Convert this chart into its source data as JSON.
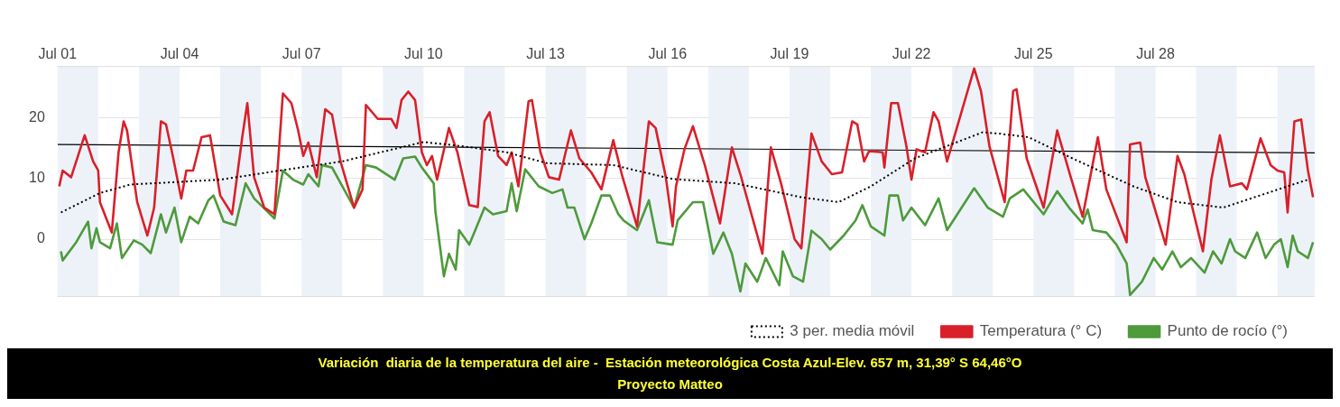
{
  "chart_data": {
    "type": "line",
    "xlim": [
      "--07-01T00:00",
      "--07-31T22:00"
    ],
    "xticks": [
      {
        "value": "--07-01",
        "label": "Jul 01"
      },
      {
        "value": "--07-04",
        "label": "Jul 04"
      },
      {
        "value": "--07-07",
        "label": "Jul 07"
      },
      {
        "value": "--07-10",
        "label": "Jul 10"
      },
      {
        "value": "--07-13",
        "label": "Jul 13"
      },
      {
        "value": "--07-16",
        "label": "Jul 16"
      },
      {
        "value": "--07-19",
        "label": "Jul 19"
      },
      {
        "value": "--07-22",
        "label": "Jul 22"
      },
      {
        "value": "--07-25",
        "label": "Jul 25"
      },
      {
        "value": "--07-28",
        "label": "Jul 28"
      }
    ],
    "ylim": [
      -9.5,
      28.5
    ],
    "yticks": [
      0,
      10,
      20
    ],
    "grid": "y",
    "legend": "bottom right",
    "bands": [
      {
        "axis": "x",
        "from": "--07-01",
        "to": "--07-02",
        "color": "#edf2f8"
      },
      {
        "axis": "x",
        "from": "--07-03",
        "to": "--07-04",
        "color": "#edf2f8"
      },
      {
        "axis": "x",
        "from": "--07-05",
        "to": "--07-06",
        "color": "#edf2f8"
      },
      {
        "axis": "x",
        "from": "--07-07",
        "to": "--07-08",
        "color": "#edf2f8"
      },
      {
        "axis": "x",
        "from": "--07-09",
        "to": "--07-10",
        "color": "#edf2f8"
      },
      {
        "axis": "x",
        "from": "--07-11",
        "to": "--07-12",
        "color": "#edf2f8"
      },
      {
        "axis": "x",
        "from": "--07-13",
        "to": "--07-14",
        "color": "#edf2f8"
      },
      {
        "axis": "x",
        "from": "--07-15",
        "to": "--07-16",
        "color": "#edf2f8"
      },
      {
        "axis": "x",
        "from": "--07-17",
        "to": "--07-18",
        "color": "#edf2f8"
      },
      {
        "axis": "x",
        "from": "--07-19",
        "to": "--07-20",
        "color": "#edf2f8"
      },
      {
        "axis": "x",
        "from": "--07-21",
        "to": "--07-22",
        "color": "#edf2f8"
      },
      {
        "axis": "x",
        "from": "--07-23",
        "to": "--07-24",
        "color": "#edf2f8"
      },
      {
        "axis": "x",
        "from": "--07-25",
        "to": "--07-26",
        "color": "#edf2f8"
      },
      {
        "axis": "x",
        "from": "--07-27",
        "to": "--07-28",
        "color": "#edf2f8"
      },
      {
        "axis": "x",
        "from": "--07-29",
        "to": "--07-30",
        "color": "#edf2f8"
      },
      {
        "axis": "x",
        "from": "--07-31",
        "to": "--07-31T22:00",
        "color": "#edf2f8"
      }
    ],
    "series": [
      {
        "name": "3 per. media móvil",
        "color": "#000000",
        "line_style": "dotted",
        "x": [
          "--07-01T02:00",
          "--07-02T01:00",
          "--07-02T19:00",
          "--07-05T00:00",
          "--07-06T11:00",
          "--07-08T00:00",
          "--07-10T00:00",
          "--07-10T23:00",
          "--07-12T01:00",
          "--07-13T01:00",
          "--07-14T16:00",
          "--07-16T03:00",
          "--07-17T16:00",
          "--07-19T07:00",
          "--07-20T05:00",
          "--07-21T00:00",
          "--07-22T02:00",
          "--07-23T18:00",
          "--07-24T03:00",
          "--07-24T21:00",
          "--07-25T23:00",
          "--07-27T11:00",
          "--07-28T13:00",
          "--07-29T16:00",
          "--07-30T18:00",
          "--07-31T19:00"
        ],
        "values": [
          4.4,
          7.6,
          9.0,
          9.8,
          11.3,
          12.8,
          16.0,
          15.3,
          14.3,
          12.5,
          12.2,
          9.9,
          9.2,
          6.9,
          6.1,
          8.7,
          13.3,
          17.6,
          17.4,
          16.8,
          13.3,
          8.7,
          6.1,
          5.2,
          7.6,
          9.9
        ]
      },
      {
        "name": "Temperatura (° C)",
        "color": "#d9202a",
        "x": [
          "--07-01T01:00",
          "--07-01T03:00",
          "--07-01T08:00",
          "--07-01T16:00",
          "--07-01T21:00",
          "--07-02T00:00",
          "--07-02T01:00",
          "--07-02T08:00",
          "--07-02T12:00",
          "--07-02T15:00",
          "--07-02T17:00",
          "--07-02T23:00",
          "--07-03T05:00",
          "--07-03T09:00",
          "--07-03T13:00",
          "--07-03T16:00",
          "--07-03T20:00",
          "--07-04T01:00",
          "--07-04T04:00",
          "--07-04T08:00",
          "--07-04T13:00",
          "--07-04T18:00",
          "--07-05T00:00",
          "--07-05T07:00",
          "--07-05T13:00",
          "--07-05T16:00",
          "--07-05T20:00",
          "--07-06T02:00",
          "--07-06T08:00",
          "--07-06T13:00",
          "--07-06T18:00",
          "--07-06T22:00",
          "--07-07T01:00",
          "--07-07T04:00",
          "--07-07T09:00",
          "--07-07T14:00",
          "--07-07T18:00",
          "--07-07T23:00",
          "--07-08T07:00",
          "--07-08T12:00",
          "--07-08T14:00",
          "--07-08T21:00",
          "--07-09T05:00",
          "--07-09T08:00",
          "--07-09T11:00",
          "--07-09T15:00",
          "--07-09T19:00",
          "--07-09T23:00",
          "--07-10T02:00",
          "--07-10T05:00",
          "--07-10T08:00",
          "--07-10T15:00",
          "--07-10T20:00",
          "--07-11T03:00",
          "--07-11T08:00",
          "--07-11T12:00",
          "--07-11T15:00",
          "--07-11T20:00",
          "--07-12T01:00",
          "--07-12T04:00",
          "--07-12T08:00",
          "--07-12T14:00",
          "--07-12T16:00",
          "--07-12T21:00",
          "--07-13T02:00",
          "--07-13T08:00",
          "--07-13T11:00",
          "--07-13T15:00",
          "--07-13T20:00",
          "--07-14T03:00",
          "--07-14T09:00",
          "--07-14T16:00",
          "--07-14T21:00",
          "--07-15T06:00",
          "--07-15T13:00",
          "--07-15T17:00",
          "--07-15T23:00",
          "--07-16T03:00",
          "--07-16T05:00",
          "--07-16T10:00",
          "--07-16T15:00",
          "--07-16T22:00",
          "--07-17T07:00",
          "--07-17T14:00",
          "--07-17T19:00",
          "--07-18T08:00",
          "--07-18T13:00",
          "--07-18T19:00",
          "--07-19T03:00",
          "--07-19T07:00",
          "--07-19T13:00",
          "--07-19T19:00",
          "--07-20T01:00",
          "--07-20T07:00",
          "--07-20T13:00",
          "--07-20T16:00",
          "--07-20T20:00",
          "--07-20T23:00",
          "--07-21T07:00",
          "--07-21T08:00",
          "--07-21T12:00",
          "--07-21T16:00",
          "--07-21T21:00",
          "--07-22T00:00",
          "--07-22T03:00",
          "--07-22T08:00",
          "--07-22T13:00",
          "--07-22T16:00",
          "--07-22T21:00",
          "--07-23T13:00",
          "--07-23T17:00",
          "--07-23T22:00",
          "--07-24T07:00",
          "--07-24T12:00",
          "--07-24T14:00",
          "--07-24T20:00",
          "--07-25T06:00",
          "--07-25T14:00",
          "--07-25T22:00",
          "--07-26T05:00",
          "--07-26T14:00",
          "--07-26T19:00",
          "--07-27T07:00",
          "--07-27T09:00",
          "--07-27T15:00",
          "--07-27T18:00",
          "--07-28T06:00",
          "--07-28T13:00",
          "--07-28T17:00",
          "--07-29T04:00",
          "--07-29T09:00",
          "--07-29T14:00",
          "--07-29T20:00",
          "--07-30T03:00",
          "--07-30T06:00",
          "--07-30T14:00",
          "--07-30T20:00",
          "--07-31T00:00",
          "--07-31T04:00",
          "--07-31T06:00",
          "--07-31T10:00",
          "--07-31T14:00",
          "--07-31T18:00",
          "--07-31T21:00"
        ],
        "values": [
          8.7,
          11.3,
          10.2,
          17.1,
          12.8,
          11.3,
          6.1,
          1.1,
          14.3,
          19.4,
          17.9,
          6.1,
          0.6,
          5.2,
          19.4,
          18.9,
          13.7,
          6.7,
          11.3,
          11.3,
          16.8,
          17.1,
          7.2,
          4.1,
          16.8,
          22.4,
          10.2,
          5.2,
          4.1,
          24.0,
          22.4,
          17.9,
          13.7,
          15.9,
          10.2,
          21.4,
          20.5,
          12.8,
          5.2,
          8.2,
          22.1,
          19.8,
          19.8,
          18.3,
          22.9,
          24.3,
          22.9,
          14.3,
          12.2,
          13.7,
          9.8,
          18.3,
          14.3,
          5.6,
          5.3,
          19.4,
          20.9,
          13.7,
          12.2,
          14.3,
          8.7,
          22.7,
          22.9,
          14.3,
          10.2,
          9.8,
          13.3,
          17.9,
          13.3,
          11.0,
          8.2,
          16.3,
          10.7,
          2.1,
          19.4,
          18.3,
          10.2,
          2.1,
          8.7,
          14.8,
          18.6,
          12.2,
          2.6,
          15.1,
          10.7,
          -2.4,
          15.1,
          9.2,
          0,
          -1.5,
          17.4,
          12.8,
          10.7,
          11.0,
          19.4,
          18.9,
          12.8,
          14.5,
          14.3,
          11.8,
          22.4,
          22.4,
          15.3,
          9.8,
          14.8,
          14.3,
          20.9,
          19.4,
          12.8,
          28.1,
          24.4,
          15.3,
          6.1,
          24.4,
          24.7,
          13.3,
          5.2,
          17.9,
          10.2,
          3.7,
          16.8,
          8.2,
          -0.5,
          15.6,
          15.9,
          10.2,
          -0.9,
          13.7,
          10.7,
          -2.0,
          9.8,
          17.1,
          8.7,
          9.2,
          8.2,
          16.6,
          12.2,
          11.3,
          11.0,
          4.4,
          19.4,
          19.7,
          11.3,
          6.9
        ]
      },
      {
        "name": "Punto de rocío (°)",
        "color": "#4e9a3c",
        "x": [
          "--07-01T02:00",
          "--07-01T03:00",
          "--07-01T11:00",
          "--07-01T18:00",
          "--07-01T20:00",
          "--07-01T23:00",
          "--07-02T01:00",
          "--07-02T07:00",
          "--07-02T11:00",
          "--07-02T14:00",
          "--07-02T21:00",
          "--07-03T02:00",
          "--07-03T07:00",
          "--07-03T13:00",
          "--07-03T16:00",
          "--07-03T21:00",
          "--07-04T01:00",
          "--07-04T06:00",
          "--07-04T11:00",
          "--07-04T17:00",
          "--07-04T20:00",
          "--07-05T02:00",
          "--07-05T09:00",
          "--07-05T15:00",
          "--07-05T20:00",
          "--07-06T08:00",
          "--07-06T13:00",
          "--07-06T19:00",
          "--07-07T01:00",
          "--07-07T04:00",
          "--07-07T10:00",
          "--07-07T12:00",
          "--07-07T18:00",
          "--07-08T07:00",
          "--07-08T14:00",
          "--07-08T20:00",
          "--07-09T07:00",
          "--07-09T12:00",
          "--07-09T19:00",
          "--07-09T23:00",
          "--07-10T06:00",
          "--07-10T07:00",
          "--07-10T12:00",
          "--07-10T15:00",
          "--07-10T19:00",
          "--07-10T21:00",
          "--07-11T03:00",
          "--07-11T12:00",
          "--07-11T17:00",
          "--07-12T01:00",
          "--07-12T04:00",
          "--07-12T07:00",
          "--07-12T12:00",
          "--07-12T20:00",
          "--07-13T04:00",
          "--07-13T10:00",
          "--07-13T13:00",
          "--07-13T17:00",
          "--07-13T23:00",
          "--07-14T03:00",
          "--07-14T09:00",
          "--07-14T14:00",
          "--07-14T19:00",
          "--07-14T22:00",
          "--07-15T06:00",
          "--07-15T13:00",
          "--07-15T18:00",
          "--07-16T03:00",
          "--07-16T06:00",
          "--07-16T15:00",
          "--07-16T21:00",
          "--07-17T03:00",
          "--07-17T09:00",
          "--07-17T14:00",
          "--07-17T19:00",
          "--07-17T22:00",
          "--07-18T05:00",
          "--07-18T10:00",
          "--07-18T18:00",
          "--07-18T20:00",
          "--07-19T02:00",
          "--07-19T08:00",
          "--07-19T13:00",
          "--07-19T19:00",
          "--07-20T00:00",
          "--07-20T08:00",
          "--07-20T15:00",
          "--07-20T19:00",
          "--07-21T00:00",
          "--07-21T08:00",
          "--07-21T11:00",
          "--07-21T16:00",
          "--07-21T19:00",
          "--07-22T00:00",
          "--07-22T08:00",
          "--07-22T16:00",
          "--07-22T21:00",
          "--07-23T13:00",
          "--07-23T21:00",
          "--07-24T06:00",
          "--07-24T10:00",
          "--07-24T18:00",
          "--07-25T06:00",
          "--07-25T14:00",
          "--07-25T21:00",
          "--07-26T05:00",
          "--07-26T08:00",
          "--07-26T11:00",
          "--07-26T19:00",
          "--07-27T01:00",
          "--07-27T07:00",
          "--07-27T09:00",
          "--07-27T16:00",
          "--07-27T23:00",
          "--07-28T04:00",
          "--07-28T10:00",
          "--07-28T15:00",
          "--07-28T21:00",
          "--07-29T05:00",
          "--07-29T10:00",
          "--07-29T15:00",
          "--07-29T20:00",
          "--07-29T23:00",
          "--07-30T05:00",
          "--07-30T12:00",
          "--07-30T17:00",
          "--07-30T22:00",
          "--07-31T02:00",
          "--07-31T06:00",
          "--07-31T09:00",
          "--07-31T12:00",
          "--07-31T18:00",
          "--07-31T21:00"
        ],
        "values": [
          -2.0,
          -3.5,
          -0.5,
          2.9,
          -1.5,
          1.8,
          -0.5,
          -1.5,
          2.6,
          -3.1,
          -0.2,
          -0.9,
          -2.3,
          4.1,
          1.1,
          5.2,
          -0.5,
          3.7,
          2.6,
          6.4,
          7.2,
          2.9,
          2.3,
          9.2,
          6.7,
          3.4,
          11.3,
          9.8,
          9.0,
          10.7,
          8.7,
          12.2,
          11.8,
          5.2,
          12.2,
          11.8,
          9.8,
          13.3,
          13.6,
          11.8,
          9.2,
          4.6,
          -6.1,
          -2.4,
          -5.0,
          1.5,
          -0.9,
          5.2,
          4.1,
          4.6,
          9.2,
          4.6,
          11.5,
          8.7,
          7.6,
          8.2,
          5.2,
          5.2,
          0,
          2.6,
          7.2,
          7.2,
          4.1,
          3.1,
          1.5,
          6.4,
          -0.5,
          -0.9,
          3.1,
          6.1,
          6.1,
          -2.4,
          1.1,
          -2.4,
          -8.6,
          -4.0,
          -7.0,
          -3.1,
          -7.6,
          -2.0,
          -6.1,
          -7.0,
          1.4,
          0,
          -1.7,
          0.6,
          3.1,
          5.6,
          2.1,
          0.6,
          7.2,
          7.2,
          3.1,
          5.2,
          2.3,
          6.7,
          1.5,
          8.4,
          5.2,
          3.7,
          6.7,
          8.2,
          4.1,
          7.9,
          5.2,
          2.6,
          4.9,
          1.5,
          1.1,
          -0.9,
          -4.0,
          -9.2,
          -7.0,
          -3.1,
          -5.0,
          -2.0,
          -4.6,
          -3.1,
          -5.5,
          -2.0,
          -4.0,
          0,
          -2.0,
          -3.1,
          1.1,
          -3.1,
          -0.9,
          0,
          -4.6,
          0.6,
          -2.0,
          -3.1,
          -0.5
        ]
      },
      {
        "type": "line",
        "color": "#000000",
        "x": [
          "--07-01T00:00",
          "--07-31T22:00"
        ],
        "values": [
          15.6,
          14.2
        ]
      }
    ],
    "annotations": [
      "Variación  diaria de la temperatura del aire -  Estación meteorológica Costa Azul-Elev. 657 m, 31,39° S 64,46°O",
      "Proyecto Matteo"
    ]
  }
}
